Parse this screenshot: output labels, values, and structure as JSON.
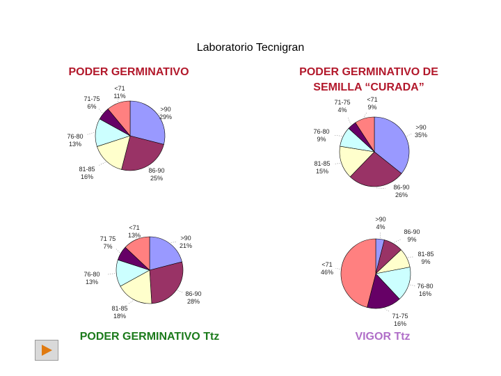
{
  "page": {
    "title": "Laboratorio Tecnigran",
    "nav_icon": "play-triangle-icon"
  },
  "colors": {
    ">90": "#9999ff",
    "86-90": "#993366",
    "81-85": "#ffffcc",
    "76-80": "#ccffff",
    "71-75": "#660066",
    "<71": "#ff8080"
  },
  "chart_data": [
    {
      "type": "pie",
      "title": "PODER GERMINATIVO",
      "categories": [
        ">90",
        "86-90",
        "81-85",
        "76-80",
        "71-75",
        "<71"
      ],
      "values": [
        29,
        25,
        16,
        13,
        6,
        11
      ],
      "labels": [
        ">90\n29%",
        "86-90\n25%",
        "81-85\n16%",
        "76-80\n13%",
        "71-75\n6%",
        "<71\n11%"
      ]
    },
    {
      "type": "pie",
      "title": "PODER GERMINATIVO DE SEMILLA “CURADA”",
      "categories": [
        ">90",
        "86-90",
        "81-85",
        "76-80",
        "71-75",
        "<71"
      ],
      "values": [
        35,
        26,
        15,
        9,
        4,
        9
      ],
      "labels": [
        ">90\n35%",
        "86-90\n26%",
        "81-85\n15%",
        "76-80\n9%",
        "71-75\n4%",
        "<71\n9%"
      ]
    },
    {
      "type": "pie",
      "title": "PODER GERMINATIVO Ttz",
      "categories": [
        ">90",
        "86-90",
        "81-85",
        "76-80",
        "71-75",
        "<71"
      ],
      "values": [
        21,
        28,
        18,
        13,
        7,
        13
      ],
      "labels": [
        ">90\n21%",
        "86-90\n28%",
        "81-85\n18%",
        "76-80\n13%",
        "71 75\n7%",
        "<71\n13%"
      ]
    },
    {
      "type": "pie",
      "title": "VIGOR Ttz",
      "categories": [
        ">90",
        "86-90",
        "81-85",
        "76-80",
        "71-75",
        "<71"
      ],
      "values": [
        4,
        9,
        9,
        16,
        16,
        46
      ],
      "labels": [
        ">90\n4%",
        "86-90\n9%",
        "81-85\n9%",
        "76-80\n16%",
        "71-75\n16%",
        "<71\n46%"
      ]
    }
  ]
}
